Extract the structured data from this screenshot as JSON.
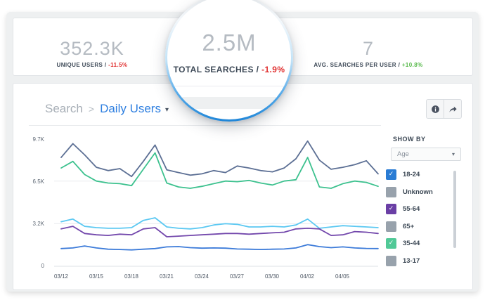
{
  "stats": {
    "separator": "/",
    "unique_users": {
      "value": "352.3K",
      "label": "UNIQUE USERS",
      "delta": "-11.5%"
    },
    "total_searches": {
      "value": "2.5M",
      "label": "TOTAL SEARCHES",
      "delta": "-1.9%"
    },
    "avg_searches_per_user": {
      "value": "7",
      "label": "AVG. SEARCHES PER USER",
      "delta": "+10.8%"
    }
  },
  "colors": {
    "negative": "#e02f2f",
    "positive": "#56b949",
    "accent_blue": "#2e7fe0",
    "lens_ring": "#1f86d8"
  },
  "chart_header": {
    "breadcrumb_root": "Search",
    "breadcrumb_separator": ">",
    "breadcrumb_current": "Daily Users",
    "caret": "▾"
  },
  "legend": {
    "title": "SHOW BY",
    "dropdown_value": "Age",
    "dropdown_caret": "▾",
    "check_glyph": "✓",
    "unchecked_color": "#98a2ac",
    "items": [
      {
        "label": "18-24",
        "checked": true,
        "color": "#2a7cd4"
      },
      {
        "label": "Unknown",
        "checked": false,
        "color": "#98a2ac"
      },
      {
        "label": "55-64",
        "checked": true,
        "color": "#6a3fa5"
      },
      {
        "label": "65+",
        "checked": false,
        "color": "#98a2ac"
      },
      {
        "label": "35-44",
        "checked": true,
        "color": "#51c997"
      },
      {
        "label": "13-17",
        "checked": false,
        "color": "#98a2ac"
      }
    ]
  },
  "chart_data": {
    "type": "line",
    "title": "Daily Users",
    "xlabel": "",
    "ylabel": "",
    "ylim": [
      0,
      9750
    ],
    "grid": true,
    "gridline_values": [
      6500,
      3250,
      0
    ],
    "legend_position": "right",
    "x": [
      "03/12",
      "03/13",
      "03/14",
      "03/15",
      "03/16",
      "03/17",
      "03/18",
      "03/19",
      "03/20",
      "03/21",
      "03/22",
      "03/23",
      "03/24",
      "03/25",
      "03/26",
      "03/27",
      "03/28",
      "03/29",
      "03/30",
      "03/31",
      "04/01",
      "04/02",
      "04/03",
      "04/04",
      "04/05",
      "04/06",
      "04/07",
      "04/08"
    ],
    "x_ticklabels": [
      "03/12",
      "03/15",
      "03/18",
      "03/21",
      "03/24",
      "03/27",
      "03/30",
      "04/02",
      "04/05"
    ],
    "y_ticklabels": [
      "9.7K",
      "6.5K",
      "3.2K",
      "0"
    ],
    "series": [
      {
        "name": "slate",
        "color": "#5c6f94",
        "values": [
          8300,
          9350,
          8500,
          7550,
          7300,
          7450,
          6850,
          8000,
          9250,
          7350,
          7150,
          6950,
          7050,
          7300,
          7150,
          7650,
          7500,
          7300,
          7200,
          7500,
          8200,
          9550,
          8100,
          7400,
          7550,
          7750,
          8050,
          7050
        ]
      },
      {
        "name": "green",
        "color": "#3cc18e",
        "values": [
          7500,
          8000,
          7000,
          6500,
          6350,
          6300,
          6150,
          7400,
          8650,
          6350,
          6050,
          5950,
          6100,
          6300,
          6500,
          6450,
          6550,
          6350,
          6200,
          6500,
          6600,
          8300,
          6050,
          5950,
          6300,
          6500,
          6400,
          6100
        ]
      },
      {
        "name": "cyan",
        "color": "#5bc8f2",
        "values": [
          3400,
          3600,
          3050,
          2950,
          2900,
          2900,
          2950,
          3500,
          3700,
          3000,
          2900,
          2850,
          2950,
          3150,
          3250,
          3200,
          3000,
          3000,
          3050,
          3000,
          3150,
          3600,
          2900,
          3000,
          3100,
          3050,
          3000,
          2950
        ]
      },
      {
        "name": "purple",
        "color": "#7348ac",
        "values": [
          2850,
          3050,
          2500,
          2400,
          2350,
          2450,
          2400,
          2850,
          2950,
          2250,
          2300,
          2350,
          2400,
          2450,
          2500,
          2500,
          2450,
          2500,
          2550,
          2600,
          2850,
          2900,
          2850,
          2350,
          2400,
          2650,
          2600,
          2500
        ]
      },
      {
        "name": "blue",
        "color": "#3c7bd9",
        "values": [
          1350,
          1400,
          1550,
          1400,
          1300,
          1280,
          1250,
          1300,
          1350,
          1480,
          1500,
          1420,
          1380,
          1400,
          1380,
          1320,
          1300,
          1280,
          1300,
          1320,
          1400,
          1650,
          1500,
          1420,
          1480,
          1400,
          1360,
          1350
        ]
      }
    ]
  }
}
